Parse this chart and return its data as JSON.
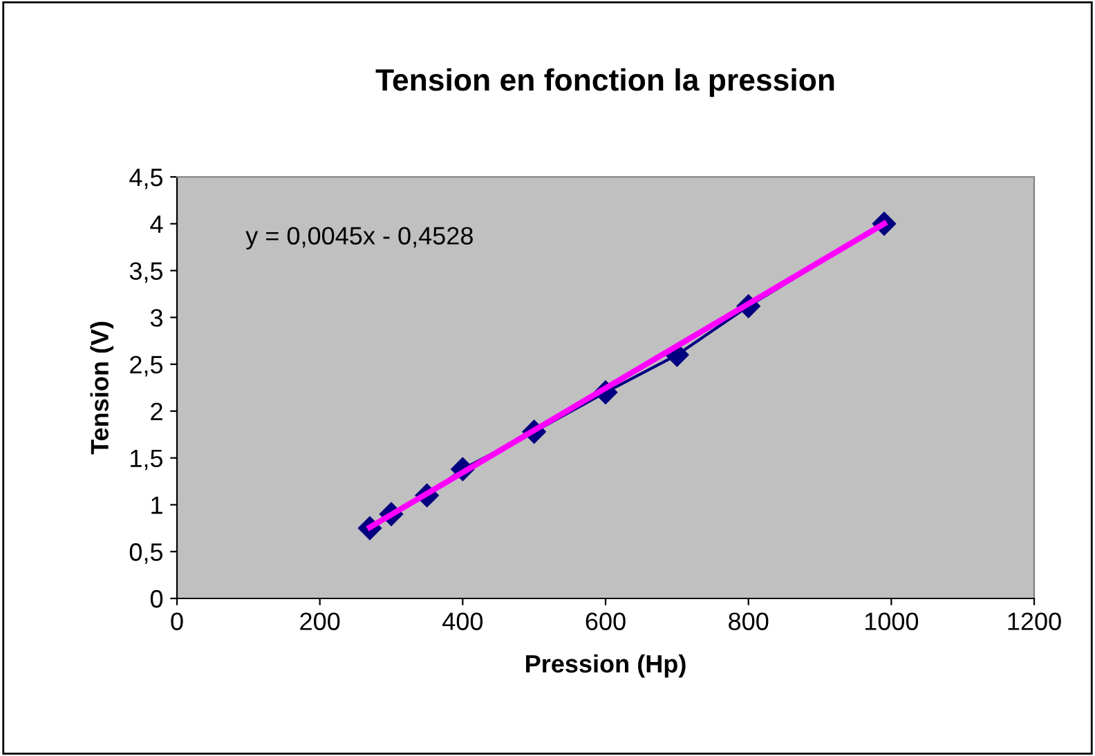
{
  "chart_data": {
    "type": "line",
    "title": "Tension en fonction la pression",
    "xlabel": "Pression (Hp)",
    "ylabel": "Tension (V)",
    "x": [
      270,
      300,
      350,
      400,
      500,
      600,
      700,
      800,
      990
    ],
    "series": [
      {
        "color": "#000080",
        "marker": "diamond",
        "values": [
          0.75,
          0.9,
          1.1,
          1.38,
          1.78,
          2.2,
          2.6,
          3.12,
          4.0
        ]
      },
      {
        "type": "line",
        "color": "#ff00ff",
        "marker": "none",
        "x": [
          270,
          990
        ],
        "values": [
          0.76,
          4.0
        ]
      }
    ],
    "annotations": [
      "y = 0,0045x - 0,4528"
    ],
    "xlim": [
      0,
      1200
    ],
    "xticks": [
      0,
      200,
      400,
      600,
      800,
      1000,
      1200
    ],
    "ylim": [
      0,
      4.5
    ],
    "yticks": [
      0,
      {
        "value": 0.5,
        "label": "0,5"
      },
      1,
      {
        "value": 1.5,
        "label": "1,5"
      },
      2,
      {
        "value": 2.5,
        "label": "2,5"
      },
      3,
      {
        "value": 3.5,
        "label": "3,5"
      },
      4,
      {
        "value": 4.5,
        "label": "4,5"
      }
    ],
    "grid": false,
    "legend": false
  }
}
